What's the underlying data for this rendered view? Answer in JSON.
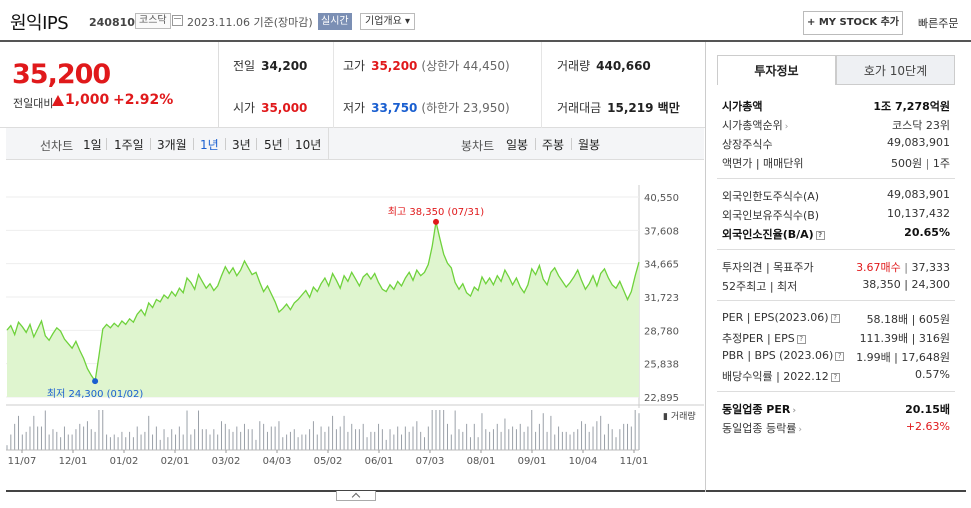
{
  "header": {
    "stock_name": "원익IPS",
    "stock_code": "240810",
    "market": "코스닥",
    "date_text": "2023.11.06  기준(장마감)",
    "realtime_label": "실시간",
    "company_label": "기업개요 ▾",
    "mystock_label": "+ MY STOCK 추가",
    "quick_order_label": "빠른주문"
  },
  "price": {
    "current": "35,200",
    "change_label": "전일대비",
    "change_value": "1,000",
    "change_rate": "+2.92%",
    "direction": "up"
  },
  "stats": {
    "prev_close_label": "전일",
    "prev_close": "34,200",
    "high_label": "고가",
    "high": "35,200",
    "upper_limit": "(상한가 44,450)",
    "volume_label": "거래량",
    "volume": "440,660",
    "open_label": "시가",
    "open": "35,000",
    "low_label": "저가",
    "low": "33,750",
    "lower_limit": "(하한가 23,950)",
    "amount_label": "거래대금",
    "amount": "15,219 백만"
  },
  "period_tabs": {
    "line_chart_label": "선차트",
    "items": [
      "1일",
      "1주일",
      "3개월",
      "1년",
      "3년",
      "5년",
      "10년"
    ],
    "active": "1년",
    "candle_chart_label": "봉차트",
    "candle_items": [
      "일봉",
      "주봉",
      "월봉"
    ]
  },
  "chart_data": {
    "type": "area",
    "y_ticks": [
      "40,550",
      "37,608",
      "34,665",
      "31,723",
      "28,780",
      "25,838",
      "22,895"
    ],
    "ylim": [
      22895,
      40550
    ],
    "x_ticks": [
      "11/07",
      "12/01",
      "01/02",
      "02/01",
      "03/02",
      "04/03",
      "05/02",
      "06/01",
      "07/03",
      "08/01",
      "09/01",
      "10/04",
      "11/01"
    ],
    "high_annotation": "최고 38,350 (07/31)",
    "low_annotation": "최저 24,300 (01/02)",
    "volume_label": "거래량",
    "line_color": "#6fd23c",
    "fill_color": "#dff5cf",
    "values": [
      28800,
      29200,
      28400,
      29500,
      29100,
      28600,
      29300,
      28200,
      28900,
      29600,
      28300,
      27900,
      28500,
      29000,
      28700,
      28000,
      27600,
      27200,
      27800,
      27000,
      26300,
      25400,
      24800,
      24300,
      26500,
      28900,
      29300,
      29000,
      29400,
      29100,
      29600,
      29300,
      29800,
      29500,
      30200,
      30600,
      30100,
      31200,
      30800,
      31500,
      31300,
      31900,
      31600,
      32200,
      31800,
      32500,
      32100,
      33400,
      33000,
      32400,
      33700,
      33100,
      32500,
      32900,
      32300,
      32700,
      33600,
      34400,
      33800,
      34300,
      33600,
      34100,
      34900,
      34300,
      33700,
      33900,
      33000,
      32200,
      32700,
      32000,
      31300,
      30400,
      30700,
      31100,
      30600,
      31200,
      31500,
      31900,
      32300,
      31700,
      32600,
      32200,
      32900,
      33400,
      32700,
      33800,
      33200,
      32500,
      33600,
      33100,
      33900,
      33300,
      32700,
      33500,
      33800,
      33300,
      33800,
      33000,
      32400,
      32200,
      32800,
      32400,
      33100,
      32700,
      33400,
      33900,
      33200,
      34100,
      33600,
      33900,
      34600,
      36200,
      38350,
      36900,
      35500,
      34700,
      34300,
      33000,
      32400,
      32900,
      32100,
      31800,
      32600,
      32300,
      33500,
      32900,
      33400,
      32800,
      33600,
      33100,
      34100,
      33500,
      32800,
      33400,
      32600,
      32100,
      32800,
      34200,
      33700,
      34500,
      33300,
      32800,
      33900,
      34300,
      33600,
      33100,
      32600,
      33000,
      33500,
      34100,
      33200,
      32400,
      32900,
      33600,
      32700,
      33800,
      34200,
      33400,
      32800,
      32500,
      33100,
      32300,
      31500,
      32200,
      33600,
      34800
    ]
  },
  "right_panel": {
    "tabs": [
      "투자정보",
      "호가 10단계"
    ],
    "active_tab": "투자정보",
    "market_cap_label": "시가총액",
    "market_cap": "1조 7,278억원",
    "market_cap_rank_label": "시가총액순위",
    "market_cap_rank": "코스닥 23위",
    "shares_label": "상장주식수",
    "shares": "49,083,901",
    "par_label": "액면가 | 매매단위",
    "par": "500원",
    "trade_unit": "1주",
    "foreign_limit_label": "외국인한도주식수(A)",
    "foreign_limit": "49,083,901",
    "foreign_hold_label": "외국인보유주식수(B)",
    "foreign_hold": "10,137,432",
    "foreign_rate_label": "외국인소진율(B/A)",
    "foreign_rate": "20.65%",
    "opinion_label": "투자의견 | 목표주가",
    "opinion": "3.67매수",
    "target_price": "37,333",
    "week52_label": "52주최고 | 최저",
    "week52": "38,350 | 24,300",
    "per_label": "PER | EPS(2023.06)",
    "per": "58.18배 | 605원",
    "est_per_label": "추정PER | EPS",
    "est_per": "111.39배 | 316원",
    "pbr_label": "PBR | BPS (2023.06)",
    "pbr": "1.99배 | 17,648원",
    "div_label": "배당수익률 | 2022.12",
    "div": "0.57%",
    "sector_per_label": "동일업종 PER",
    "sector_per": "20.15배",
    "sector_change_label": "동일업종 등락률",
    "sector_change": "+2.63%"
  }
}
